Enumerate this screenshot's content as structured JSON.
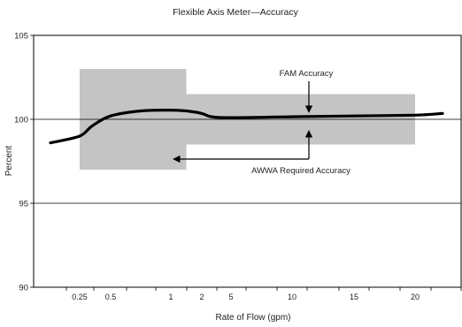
{
  "chart_data": {
    "type": "line",
    "title": "Flexible Axis Meter—Accuracy",
    "xlabel": "Rate of Flow (gpm)",
    "ylabel": "Percent",
    "ylim": [
      90,
      105
    ],
    "y_ticks": [
      90,
      95,
      100,
      105
    ],
    "x_tick_labels": [
      "0.25",
      "0.5",
      "1",
      "2",
      "5",
      "10",
      "15",
      "20"
    ],
    "x_tick_count_total": 14,
    "gridlines": "horizontal at 95 and 100",
    "series": [
      {
        "name": "FAM Accuracy",
        "color": "#000000",
        "points": [
          {
            "x": 0.1,
            "y": 98.6
          },
          {
            "x": 0.25,
            "y": 99.0
          },
          {
            "x": 0.35,
            "y": 99.6
          },
          {
            "x": 0.5,
            "y": 100.2
          },
          {
            "x": 0.75,
            "y": 100.5
          },
          {
            "x": 1,
            "y": 100.55
          },
          {
            "x": 1.5,
            "y": 100.5
          },
          {
            "x": 2,
            "y": 100.35
          },
          {
            "x": 3,
            "y": 100.15
          },
          {
            "x": 5,
            "y": 100.1
          },
          {
            "x": 10,
            "y": 100.15
          },
          {
            "x": 15,
            "y": 100.2
          },
          {
            "x": 20,
            "y": 100.25
          },
          {
            "x": 25,
            "y": 100.35
          }
        ]
      }
    ],
    "bands": [
      {
        "name": "AWWA Required Accuracy",
        "from_x": 0.25,
        "to_x": 1.5,
        "y_low": 97.0,
        "y_high": 103.0,
        "color": "#c4c4c4"
      },
      {
        "name": "AWWA Required Accuracy",
        "from_x": 1.5,
        "to_x": 20,
        "y_low": 98.5,
        "y_high": 101.5,
        "color": "#c4c4c4"
      }
    ],
    "annotations": [
      {
        "text": "FAM Accuracy",
        "points_to": "curve"
      },
      {
        "text": "AWWA Required Accuracy",
        "points_to": "bands"
      }
    ]
  }
}
